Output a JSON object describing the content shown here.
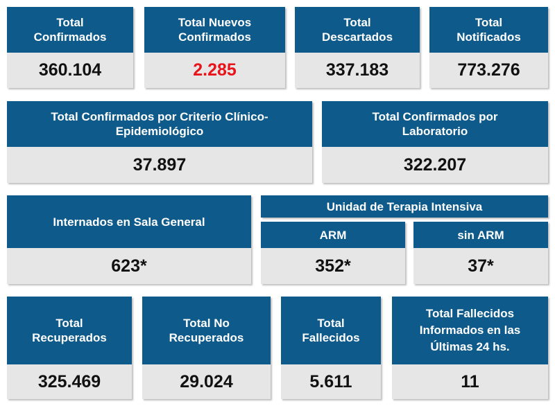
{
  "row1": [
    {
      "title": "Total\nConfirmados",
      "value": "360.104"
    },
    {
      "title": "Total Nuevos\nConfirmados",
      "value": "2.285"
    },
    {
      "title": "Total\nDescartados",
      "value": "337.183"
    },
    {
      "title": "Total\nNotificados",
      "value": "773.276"
    }
  ],
  "row2": [
    {
      "title": "Total Confirmados por Criterio Clínico-\nEpidemiológico",
      "value": "37.897"
    },
    {
      "title": "Total Confirmados por\nLaboratorio",
      "value": "322.207"
    }
  ],
  "row3": {
    "sala_general": {
      "title": "Internados en Sala General",
      "value": "623*"
    },
    "uti_title": "Unidad de Terapia Intensiva",
    "arm": {
      "title": "ARM",
      "value": "352*"
    },
    "sin_arm": {
      "title": "sin ARM",
      "value": "37*"
    }
  },
  "row4": [
    {
      "title": "Total\nRecuperados",
      "value": "325.469"
    },
    {
      "title": "Total No\nRecuperados",
      "value": "29.024"
    },
    {
      "title": "Total\nFallecidos",
      "value": "5.611"
    },
    {
      "title": "Total Fallecidos\nInformados en las\nÚltimas 24 hs.",
      "value": "11"
    }
  ],
  "colors": {
    "header_bg": "#0e5a8a",
    "value_bg": "#e6e6e6",
    "highlight": "#e8141b"
  }
}
